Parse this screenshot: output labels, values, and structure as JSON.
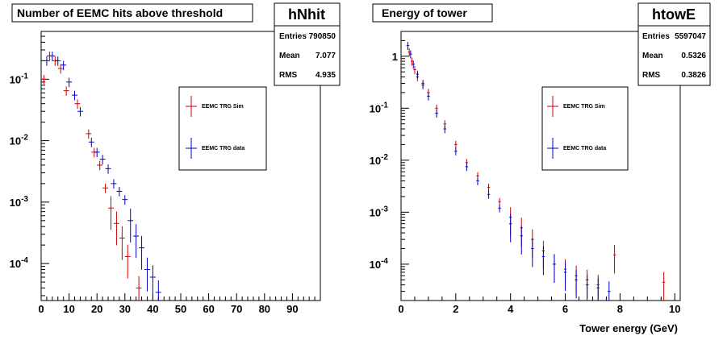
{
  "chart_data": [
    {
      "type": "scatter",
      "title": "Number of EEMC hits above threshold",
      "xlabel": "",
      "ylabel": "",
      "xlim": [
        0,
        100
      ],
      "ylim": [
        2.5e-05,
        0.6
      ],
      "log_y": true,
      "grid": false,
      "x_ticks": [
        "0",
        "10",
        "20",
        "30",
        "40",
        "50",
        "60",
        "70",
        "80",
        "90"
      ],
      "y_ticks": [
        {
          "value": 0.1,
          "base": "10",
          "exp": "-1"
        },
        {
          "value": 0.01,
          "base": "10",
          "exp": "-2"
        },
        {
          "value": 0.001,
          "base": "10",
          "exp": "-3"
        },
        {
          "value": 0.0001,
          "base": "10",
          "exp": "-4"
        }
      ],
      "stats": {
        "name": "hNhit",
        "rows": [
          {
            "label": "Entries",
            "value": "790850"
          },
          {
            "label": "Mean",
            "value": "7.077"
          },
          {
            "label": "RMS",
            "value": "4.935"
          }
        ]
      },
      "legend_position": "right",
      "series": [
        {
          "name": "EEMC TRG Sim",
          "color": "#cc0000",
          "points": [
            {
              "x": 1,
              "y": 0.1
            },
            {
              "x": 3,
              "y": 0.24
            },
            {
              "x": 5,
              "y": 0.2
            },
            {
              "x": 7,
              "y": 0.15
            },
            {
              "x": 9,
              "y": 0.065
            },
            {
              "x": 13,
              "y": 0.04
            },
            {
              "x": 17,
              "y": 0.013
            },
            {
              "x": 19,
              "y": 0.0065
            },
            {
              "x": 21,
              "y": 0.004
            },
            {
              "x": 23,
              "y": 0.0017
            },
            {
              "x": 25,
              "y": 0.0008
            },
            {
              "x": 27,
              "y": 0.00045
            },
            {
              "x": 29,
              "y": 0.00026
            },
            {
              "x": 31,
              "y": 0.00013
            },
            {
              "x": 35,
              "y": 4e-05
            }
          ]
        },
        {
          "name": "EEMC TRG data",
          "color": "#0000cc",
          "points": [
            {
              "x": 2,
              "y": 0.2
            },
            {
              "x": 4,
              "y": 0.24
            },
            {
              "x": 6,
              "y": 0.2
            },
            {
              "x": 8,
              "y": 0.17
            },
            {
              "x": 10,
              "y": 0.09
            },
            {
              "x": 12,
              "y": 0.055
            },
            {
              "x": 14,
              "y": 0.03
            },
            {
              "x": 18,
              "y": 0.0095
            },
            {
              "x": 20,
              "y": 0.0065
            },
            {
              "x": 22,
              "y": 0.005
            },
            {
              "x": 24,
              "y": 0.0035
            },
            {
              "x": 26,
              "y": 0.002
            },
            {
              "x": 28,
              "y": 0.0015
            },
            {
              "x": 30,
              "y": 0.0011
            },
            {
              "x": 32,
              "y": 0.0005
            },
            {
              "x": 34,
              "y": 0.00028
            },
            {
              "x": 36,
              "y": 0.00018
            },
            {
              "x": 38,
              "y": 8e-05
            },
            {
              "x": 40,
              "y": 6e-05
            },
            {
              "x": 42,
              "y": 3.4e-05
            }
          ]
        }
      ]
    },
    {
      "type": "scatter",
      "title": "Energy of tower",
      "xlabel": "Tower energy (GeV)",
      "ylabel": "",
      "xlim": [
        0,
        10.2
      ],
      "ylim": [
        2e-05,
        3
      ],
      "log_y": true,
      "grid": false,
      "x_ticks": [
        "0",
        "2",
        "4",
        "6",
        "8",
        "10"
      ],
      "y_ticks": [
        {
          "value": 1,
          "base": "1",
          "exp": ""
        },
        {
          "value": 0.1,
          "base": "10",
          "exp": "-1"
        },
        {
          "value": 0.01,
          "base": "10",
          "exp": "-2"
        },
        {
          "value": 0.001,
          "base": "10",
          "exp": "-3"
        },
        {
          "value": 0.0001,
          "base": "10",
          "exp": "-4"
        }
      ],
      "stats": {
        "name": "htowE",
        "rows": [
          {
            "label": "Entries",
            "value": "5597047"
          },
          {
            "label": "Mean",
            "value": "0.5326"
          },
          {
            "label": "RMS",
            "value": "0.3826"
          }
        ]
      },
      "legend_position": "center-right",
      "series": [
        {
          "name": "EEMC TRG Sim",
          "color": "#cc0000",
          "points": [
            {
              "x": 0.3,
              "y": 1.2
            },
            {
              "x": 0.4,
              "y": 0.8
            },
            {
              "x": 0.5,
              "y": 0.55
            },
            {
              "x": 0.6,
              "y": 0.4
            },
            {
              "x": 0.8,
              "y": 0.3
            },
            {
              "x": 1.0,
              "y": 0.2
            },
            {
              "x": 1.3,
              "y": 0.1
            },
            {
              "x": 1.6,
              "y": 0.05
            },
            {
              "x": 2.0,
              "y": 0.02
            },
            {
              "x": 2.4,
              "y": 0.009
            },
            {
              "x": 2.8,
              "y": 0.005
            },
            {
              "x": 3.2,
              "y": 0.003
            },
            {
              "x": 3.6,
              "y": 0.0016
            },
            {
              "x": 4.0,
              "y": 0.0008
            },
            {
              "x": 4.4,
              "y": 0.0005
            },
            {
              "x": 4.8,
              "y": 0.0003
            },
            {
              "x": 5.2,
              "y": 0.00018
            },
            {
              "x": 5.6,
              "y": 0.0001
            },
            {
              "x": 6.0,
              "y": 8e-05
            },
            {
              "x": 6.4,
              "y": 6e-05
            },
            {
              "x": 6.8,
              "y": 5e-05
            },
            {
              "x": 7.2,
              "y": 4e-05
            },
            {
              "x": 7.8,
              "y": 0.00015
            },
            {
              "x": 9.6,
              "y": 4.5e-05
            }
          ]
        },
        {
          "name": "EEMC TRG data",
          "color": "#0000cc",
          "points": [
            {
              "x": 0.25,
              "y": 1.6
            },
            {
              "x": 0.35,
              "y": 1.1
            },
            {
              "x": 0.45,
              "y": 0.7
            },
            {
              "x": 0.6,
              "y": 0.45
            },
            {
              "x": 0.8,
              "y": 0.28
            },
            {
              "x": 1.0,
              "y": 0.17
            },
            {
              "x": 1.3,
              "y": 0.08
            },
            {
              "x": 1.6,
              "y": 0.04
            },
            {
              "x": 2.0,
              "y": 0.015
            },
            {
              "x": 2.4,
              "y": 0.0075
            },
            {
              "x": 2.8,
              "y": 0.004
            },
            {
              "x": 3.2,
              "y": 0.0022
            },
            {
              "x": 3.6,
              "y": 0.0012
            },
            {
              "x": 4.0,
              "y": 0.0006
            },
            {
              "x": 4.4,
              "y": 0.00035
            },
            {
              "x": 4.8,
              "y": 0.0002
            },
            {
              "x": 5.2,
              "y": 0.00014
            },
            {
              "x": 5.6,
              "y": 0.0001
            },
            {
              "x": 6.0,
              "y": 7e-05
            },
            {
              "x": 6.4,
              "y": 5e-05
            },
            {
              "x": 6.8,
              "y": 4e-05
            },
            {
              "x": 7.2,
              "y": 3.5e-05
            },
            {
              "x": 7.6,
              "y": 3e-05
            }
          ]
        }
      ]
    }
  ]
}
